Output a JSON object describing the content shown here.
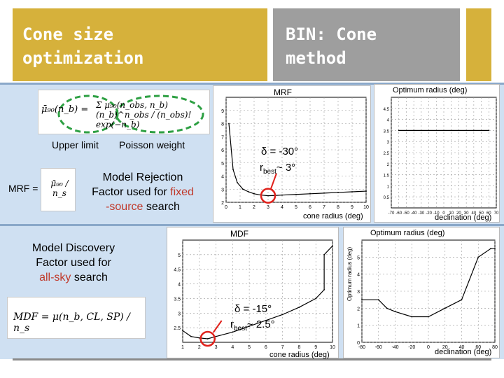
{
  "title_left": {
    "line1": "Cone size",
    "line2": "optimization"
  },
  "title_right": {
    "line1": "BIN: Cone",
    "line2": "method"
  },
  "formulas": {
    "mrf_formula_lhs": "μ̄₉₀(n_b) =",
    "mrf_formula_rhs": "Σ μ₉₀(n_obs, n_b) (n_b)^n_obs / (n_obs)! exp(−n_b)",
    "upper_limit_label": "Upper limit",
    "poisson_weight_label": "Poisson weight",
    "mrf_prefix": "MRF =",
    "mrf_fraction": "μ̄₉₀ / n_s",
    "mdf_formula": "MDF = μ(n_b, CL, SP) / n_s"
  },
  "text": {
    "mrf_desc_1": "Model Rejection",
    "mrf_desc_2": "Factor used for",
    "mrf_desc_fixed": "fixed",
    "mrf_desc_3": "-source",
    "mrf_desc_4": "search",
    "mdf_desc_1": "Model Discovery",
    "mdf_desc_2": "Factor used for",
    "mdf_desc_allsky": "all-sky",
    "mdf_desc_3": "search"
  },
  "plot_labels": {
    "mrf_title": "MRF",
    "mrf_opt_title": "Optimum radius (deg)",
    "mrf_xlabel": "cone radius (deg)",
    "mrf_opt_xlabel": "declination (deg)",
    "mrf_delta": "δ = -30°",
    "mrf_rbest": "r",
    "mrf_rbest_sub": "best",
    "mrf_rbest_val": "~ 3°",
    "mdf_title": "MDF",
    "mdf_opt_title": "Optimum radius (deg)",
    "mdf_opt_ylabel": "Optimum radius (deg)",
    "mdf_xlabel": "cone radius (deg)",
    "mdf_opt_xlabel": "declination (deg)",
    "mdf_delta": "δ = -15°",
    "mdf_rbest": "r",
    "mdf_rbest_sub": "best",
    "mdf_rbest_val": "~ 2.5°"
  },
  "colors": {
    "title_gold": "#d6b13b",
    "title_gray": "#9e9e9e",
    "band_blue": "#cfe0f2",
    "ellipse_green": "#2ea043",
    "marker_red": "#e0211b"
  },
  "chart_data": [
    {
      "type": "line",
      "title": "MRF",
      "xlabel": "cone radius (deg)",
      "x_ticks": [
        0,
        1,
        2,
        3,
        4,
        5,
        6,
        7,
        8,
        9,
        10
      ],
      "y_ticks": [
        2,
        3,
        4,
        5,
        6,
        7,
        8,
        9
      ],
      "xlim": [
        0,
        10
      ],
      "ylim": [
        2,
        10
      ],
      "x": [
        0.2,
        0.5,
        0.8,
        1.2,
        1.6,
        2.0,
        2.5,
        3.0,
        3.5,
        4.0,
        5.0,
        6.0,
        7.0,
        8.0,
        9.0,
        10.0
      ],
      "values": [
        8.0,
        4.5,
        3.5,
        3.0,
        2.8,
        2.65,
        2.55,
        2.5,
        2.52,
        2.55,
        2.6,
        2.65,
        2.7,
        2.75,
        2.8,
        2.85
      ],
      "annotations": [
        "δ = -30°",
        "r_best ~ 3°"
      ]
    },
    {
      "type": "line",
      "title": "Optimum radius (deg)",
      "xlabel": "declination (deg)",
      "x_ticks": [
        -70,
        -60,
        -50,
        -40,
        -30,
        -20,
        -10,
        0,
        10,
        20,
        30,
        40,
        50,
        60,
        70
      ],
      "y_ticks": [
        0.5,
        1,
        1.5,
        2,
        2.5,
        3,
        3.5,
        4,
        4.5
      ],
      "xlim": [
        -70,
        70
      ],
      "ylim": [
        0,
        5
      ],
      "x": [
        -60,
        -40,
        -40,
        40,
        40,
        60
      ],
      "values": [
        3.5,
        3.5,
        3.5,
        3.5,
        3.5,
        3.5
      ]
    },
    {
      "type": "line",
      "title": "MDF",
      "xlabel": "cone radius (deg)",
      "x_ticks": [
        1,
        2,
        3,
        4,
        5,
        6,
        7,
        8,
        9,
        10
      ],
      "y_ticks": [
        2.5,
        3,
        3.5,
        4,
        4.5,
        5
      ],
      "xlim": [
        1,
        10
      ],
      "ylim": [
        2,
        5.5
      ],
      "x": [
        1,
        1.5,
        2,
        2.5,
        3,
        4,
        5,
        6,
        7,
        8,
        9,
        9.5,
        9.5,
        10
      ],
      "values": [
        2.4,
        2.2,
        2.15,
        2.12,
        2.2,
        2.35,
        2.55,
        2.75,
        2.95,
        3.2,
        3.5,
        3.8,
        5.0,
        5.3
      ],
      "annotations": [
        "δ = -15°",
        "r_best ~ 2.5°"
      ]
    },
    {
      "type": "line",
      "title": "Optimum radius (deg)",
      "ylabel": "Optimum radius (deg)",
      "xlabel": "declination (deg)",
      "x_ticks": [
        -80,
        -60,
        -40,
        -20,
        0,
        20,
        40,
        60,
        80
      ],
      "y_ticks": [
        0,
        1,
        2,
        3,
        4,
        5
      ],
      "xlim": [
        -80,
        80
      ],
      "ylim": [
        0,
        6
      ],
      "x": [
        -80,
        -60,
        -50,
        -40,
        -20,
        0,
        20,
        40,
        60,
        75,
        80
      ],
      "values": [
        2.5,
        2.5,
        2.0,
        1.8,
        1.5,
        1.5,
        2.0,
        2.5,
        5.0,
        5.5,
        5.5
      ]
    }
  ]
}
